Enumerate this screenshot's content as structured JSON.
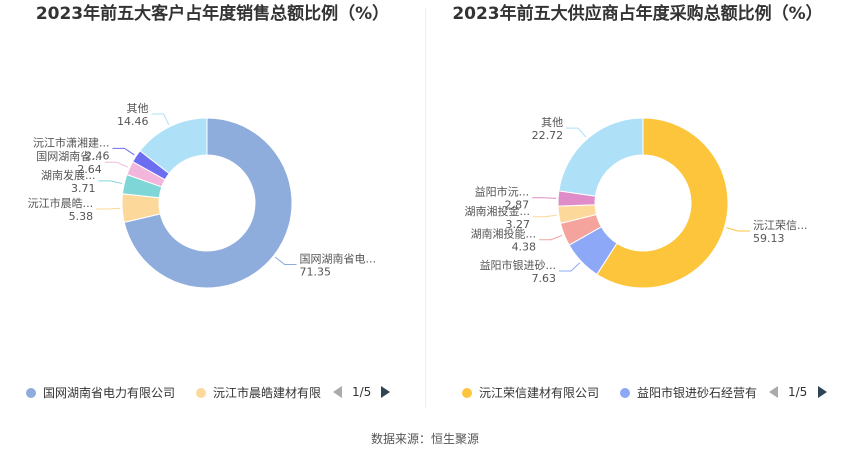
{
  "chart_data": [
    {
      "type": "pie",
      "title": "2023年前五大客户占年度销售总额比例（%）",
      "slices": [
        {
          "label": "国网湖南省电...",
          "value": 71.35,
          "color": "#8eacdc"
        },
        {
          "label": "沅江市晨皓...",
          "value": 5.38,
          "color": "#fdd89b"
        },
        {
          "label": "湖南发展...",
          "value": 3.71,
          "color": "#7fd6d6"
        },
        {
          "label": "国网湖南省...",
          "value": 2.64,
          "color": "#f2b6dc"
        },
        {
          "label": "沅江市潇湘建...",
          "value": 2.46,
          "color": "#6c6ef2"
        },
        {
          "label": "其他",
          "value": 14.46,
          "color": "#aee0f8"
        }
      ],
      "legend": {
        "items": [
          {
            "label": "国网湖南省电力有限公司",
            "color": "#8eacdc"
          },
          {
            "label": "沅江市晨皓建材有限",
            "color": "#fdd89b"
          }
        ],
        "page": "1/5"
      }
    },
    {
      "type": "pie",
      "title": "2023年前五大供应商占年度采购总额比例（%）",
      "slices": [
        {
          "label": "沅江荣信...",
          "value": 59.13,
          "color": "#fdc53c"
        },
        {
          "label": "益阳市银进砂...",
          "value": 7.63,
          "color": "#8ea8f8"
        },
        {
          "label": "湖南湘投能...",
          "value": 4.38,
          "color": "#f4a49c"
        },
        {
          "label": "湖南湘投金...",
          "value": 3.27,
          "color": "#fdd89b"
        },
        {
          "label": "益阳市沅...",
          "value": 2.87,
          "color": "#e08cc8"
        },
        {
          "label": "其他",
          "value": 22.72,
          "color": "#aee0f8"
        }
      ],
      "legend": {
        "items": [
          {
            "label": "沅江荣信建材有限公司",
            "color": "#fdc53c"
          },
          {
            "label": "益阳市银进砂石经营有",
            "color": "#8ea8f8"
          }
        ],
        "page": "1/5"
      }
    }
  ],
  "footer": {
    "source": "数据来源：恒生聚源"
  }
}
